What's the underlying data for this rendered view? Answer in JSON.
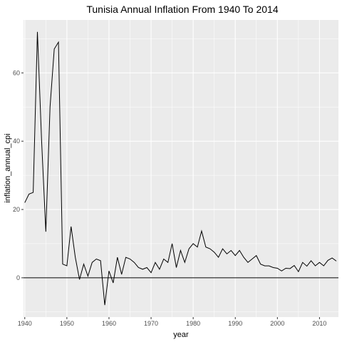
{
  "chart_data": {
    "type": "line",
    "title": "Tunisia Annual Inflation From 1940 To 2014",
    "xlabel": "year",
    "ylabel": "inflation_annual_cpi",
    "xlim": [
      1939.7,
      2014.5
    ],
    "ylim": [
      -11.5,
      75.5
    ],
    "x_ticks": [
      1940,
      1950,
      1960,
      1970,
      1980,
      1990,
      2000,
      2010
    ],
    "y_ticks": [
      0,
      20,
      40,
      60
    ],
    "reference_line_y": 0,
    "grid": true,
    "background": "#ebebeb",
    "grid_color": "#ffffff",
    "line_color": "#000000",
    "x": [
      1940,
      1941,
      1942,
      1943,
      1944,
      1945,
      1946,
      1947,
      1948,
      1949,
      1950,
      1951,
      1952,
      1953,
      1954,
      1955,
      1956,
      1957,
      1958,
      1959,
      1960,
      1961,
      1962,
      1963,
      1964,
      1965,
      1966,
      1967,
      1968,
      1969,
      1970,
      1971,
      1972,
      1973,
      1974,
      1975,
      1976,
      1977,
      1978,
      1979,
      1980,
      1981,
      1982,
      1983,
      1984,
      1985,
      1986,
      1987,
      1988,
      1989,
      1990,
      1991,
      1992,
      1993,
      1994,
      1995,
      1996,
      1997,
      1998,
      1999,
      2000,
      2001,
      2002,
      2003,
      2004,
      2005,
      2006,
      2007,
      2008,
      2009,
      2010,
      2011,
      2012,
      2013,
      2014
    ],
    "y": [
      22,
      24.5,
      25,
      72,
      40,
      13.5,
      50,
      67,
      69,
      4,
      3.5,
      15,
      6,
      -0.5,
      4,
      0.5,
      4.5,
      5.5,
      5,
      -8,
      2,
      -1.5,
      6,
      1,
      6,
      5.5,
      4.5,
      3,
      2.5,
      3,
      1.5,
      4.5,
      2.5,
      5.5,
      4.5,
      10,
      3,
      8,
      4.5,
      8.5,
      10,
      9,
      13.7,
      9,
      8.5,
      7.5,
      6,
      8.5,
      7,
      8,
      6.5,
      8,
      6,
      4.5,
      5.5,
      6.5,
      4,
      3.5,
      3.5,
      3,
      2.8,
      2,
      2.8,
      2.7,
      3.6,
      1.8,
      4.5,
      3.4,
      5,
      3.5,
      4.5,
      3.5,
      5.1,
      5.8,
      4.9
    ]
  }
}
